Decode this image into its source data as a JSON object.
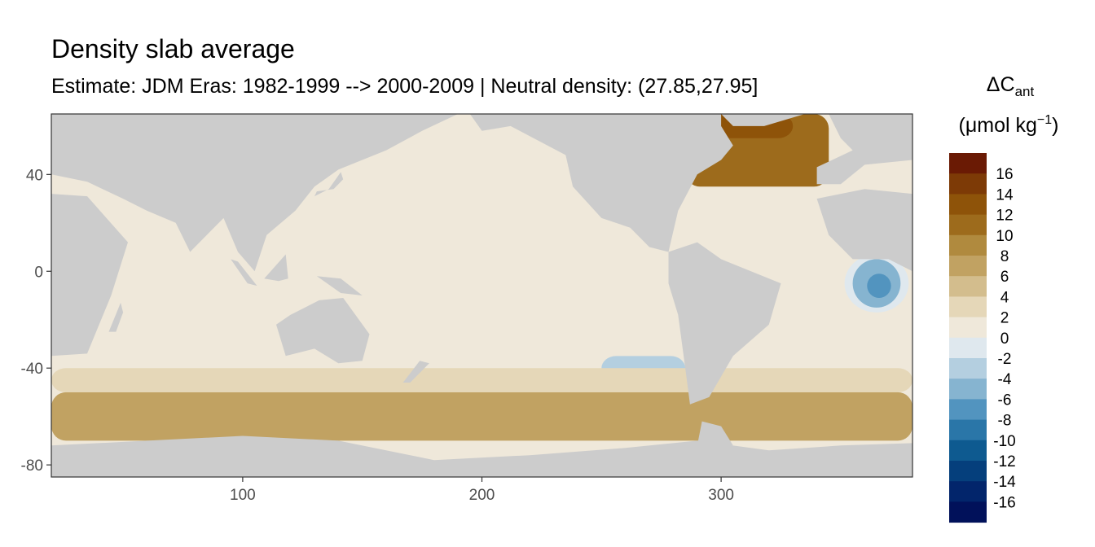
{
  "chart_data": {
    "type": "heatmap",
    "title": "Density slab average",
    "subtitle": "Estimate: JDM Eras: 1982-1999 --> 2000-2009 | Neutral density: (27.85,27.95]",
    "xlabel": "",
    "ylabel": "",
    "xlim": [
      20,
      380
    ],
    "ylim": [
      -85,
      65
    ],
    "x_ticks": [
      100,
      200,
      300
    ],
    "y_ticks": [
      40,
      0,
      -40,
      -80
    ],
    "grid": false,
    "legend_placement": "right",
    "legend_title": {
      "symbol": "ΔC",
      "subscript": "ant",
      "unit_prefix": "(μmol kg",
      "unit_superscript": "−1",
      "unit_suffix": ")"
    },
    "legend": [
      {
        "label": "16",
        "color": "#6a1a04"
      },
      {
        "label": "14",
        "color": "#7d3a06"
      },
      {
        "label": "12",
        "color": "#8e5309"
      },
      {
        "label": "10",
        "color": "#9d6b1c"
      },
      {
        "label": "8",
        "color": "#b08a3e"
      },
      {
        "label": "6",
        "color": "#c1a262"
      },
      {
        "label": "4",
        "color": "#d3bd8d"
      },
      {
        "label": "2",
        "color": "#e5d7b8"
      },
      {
        "label": "0",
        "color": "#efe8da"
      },
      {
        "label": "-2",
        "color": "#dfe8ee"
      },
      {
        "label": "-4",
        "color": "#b4cfe0"
      },
      {
        "label": "-6",
        "color": "#86b4d0"
      },
      {
        "label": "-8",
        "color": "#5294bf"
      },
      {
        "label": "-10",
        "color": "#2a76a8"
      },
      {
        "label": "-12",
        "color": "#0e5a90"
      },
      {
        "label": "-14",
        "color": "#053f7c"
      },
      {
        "label": "-16",
        "color": "#02256b"
      },
      {
        "label": "",
        "color": "#01115a"
      }
    ],
    "land_color": "#cccccc",
    "field": {
      "base_value": 0,
      "regions": [
        {
          "name": "north-pacific",
          "lon": [
            150,
            270
          ],
          "lat": [
            -10,
            40
          ],
          "value": -1
        },
        {
          "name": "north-atlantic",
          "lon": [
            285,
            345
          ],
          "lat": [
            35,
            65
          ],
          "value": 9
        },
        {
          "name": "nordic-seas",
          "lon": [
            290,
            330
          ],
          "lat": [
            55,
            65
          ],
          "value": 11
        },
        {
          "name": "eq-atlantic-eddy",
          "lon": [
            355,
            375
          ],
          "lat": [
            -15,
            5
          ],
          "value": -9
        },
        {
          "name": "southern-ocean-band",
          "lon": [
            20,
            380
          ],
          "lat": [
            -70,
            -50
          ],
          "value": 5
        },
        {
          "name": "south-pacific-blue",
          "lon": [
            250,
            285
          ],
          "lat": [
            -45,
            -35
          ],
          "value": -5
        },
        {
          "name": "circumpolar",
          "lon": [
            20,
            380
          ],
          "lat": [
            -50,
            -40
          ],
          "value": 2
        }
      ]
    }
  }
}
